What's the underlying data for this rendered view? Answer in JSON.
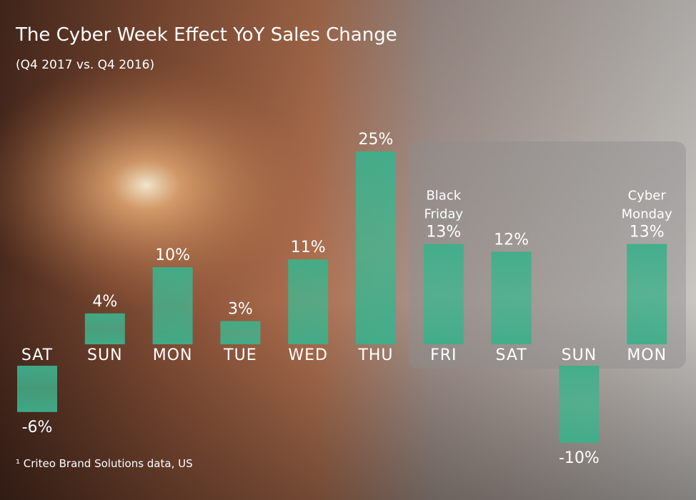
{
  "chart_data": {
    "type": "bar",
    "title": "The Cyber Week Effect YoY Sales Change",
    "subtitle": "(Q4 2017 vs. Q4 2016)",
    "categories": [
      "SAT",
      "SUN",
      "MON",
      "TUE",
      "WED",
      "THU",
      "FRI",
      "SAT",
      "SUN",
      "MON"
    ],
    "values": [
      -6,
      4,
      10,
      3,
      11,
      25,
      13,
      12,
      -10,
      13
    ],
    "value_labels": [
      "-6%",
      "4%",
      "10%",
      "3%",
      "11%",
      "25%",
      "13%",
      "12%",
      "-10%",
      "13%"
    ],
    "color": "#3fae8a",
    "annotations": [
      {
        "text": "Black Friday",
        "category": 6
      },
      {
        "text": "Cyber Monday",
        "category": 9
      }
    ],
    "footnote": "¹ Criteo Brand Solutions data, US"
  }
}
